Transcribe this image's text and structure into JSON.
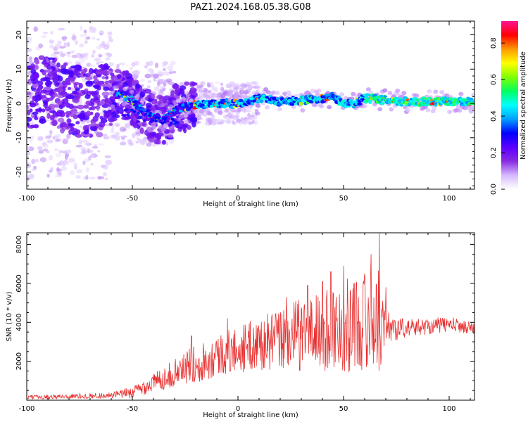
{
  "figure_title": "PAZ1.2024.168.05.38.G08",
  "chart_data": [
    {
      "type": "heatmap",
      "name": "spectrogram",
      "xlabel": "Height of straight line (km)",
      "ylabel": "Frequency (Hz)",
      "xlim": [
        -100,
        112
      ],
      "ylim": [
        -25,
        24
      ],
      "x_ticks": [
        -100,
        -50,
        0,
        50,
        100
      ],
      "y_ticks": [
        -20,
        -10,
        0,
        10,
        20
      ],
      "colorbar": {
        "label": "Normalized spectral amplitude",
        "range": [
          0,
          0.92
        ],
        "ticks": [
          0.0,
          0.2,
          0.4,
          0.6,
          0.8
        ],
        "colormap": [
          "#ffffff",
          "#d6b8ff",
          "#8a2be2",
          "#5a00ff",
          "#0000ff",
          "#00a0ff",
          "#00ffff",
          "#00ff60",
          "#80ff00",
          "#ffff00",
          "#ff9900",
          "#ff0000",
          "#ff1493"
        ]
      },
      "ridge": {
        "note_free": true,
        "points": [
          [
            -100,
            2
          ],
          [
            -90,
            4
          ],
          [
            -80,
            1
          ],
          [
            -70,
            0
          ],
          [
            -60,
            2
          ],
          [
            -55,
            3
          ],
          [
            -50,
            1
          ],
          [
            -45,
            -2
          ],
          [
            -40,
            -4
          ],
          [
            -35,
            -5
          ],
          [
            -30,
            -2
          ],
          [
            -25,
            -1
          ],
          [
            -20,
            -0.5
          ],
          [
            -10,
            0
          ],
          [
            0,
            0
          ],
          [
            10,
            1.5
          ],
          [
            20,
            0.5
          ],
          [
            30,
            0.8
          ],
          [
            40,
            1.5
          ],
          [
            45,
            2
          ],
          [
            50,
            0
          ],
          [
            55,
            0
          ],
          [
            60,
            1.5
          ],
          [
            70,
            1
          ],
          [
            80,
            0.5
          ],
          [
            90,
            0.5
          ],
          [
            100,
            0.5
          ],
          [
            112,
            0.5
          ]
        ]
      },
      "grid": false
    },
    {
      "type": "line",
      "name": "snr",
      "xlabel": "Height of straight line (km)",
      "ylabel": "SNR (10 * v/v)",
      "xlim": [
        -100,
        112
      ],
      "ylim": [
        0,
        8600
      ],
      "x_ticks": [
        -100,
        -50,
        0,
        50,
        100
      ],
      "y_ticks": [
        2000,
        4000,
        6000,
        8000
      ],
      "color": "#e83030",
      "envelope": [
        [
          -100,
          150
        ],
        [
          -80,
          200
        ],
        [
          -60,
          250
        ],
        [
          -50,
          400
        ],
        [
          -40,
          900
        ],
        [
          -30,
          1400
        ],
        [
          -20,
          1900
        ],
        [
          -10,
          2300
        ],
        [
          0,
          2600
        ],
        [
          10,
          2900
        ],
        [
          20,
          3100
        ],
        [
          30,
          3400
        ],
        [
          40,
          3600
        ],
        [
          50,
          3800
        ],
        [
          60,
          4000
        ],
        [
          67,
          4100
        ],
        [
          70,
          3800
        ],
        [
          75,
          3700
        ],
        [
          80,
          3700
        ],
        [
          90,
          3800
        ],
        [
          100,
          3900
        ],
        [
          112,
          3700
        ]
      ],
      "spread": [
        [
          -100,
          100
        ],
        [
          -60,
          150
        ],
        [
          -45,
          400
        ],
        [
          -30,
          700
        ],
        [
          -20,
          1000
        ],
        [
          -10,
          1100
        ],
        [
          0,
          1200
        ],
        [
          10,
          1400
        ],
        [
          20,
          1600
        ],
        [
          30,
          1900
        ],
        [
          40,
          2200
        ],
        [
          50,
          2400
        ],
        [
          60,
          2500
        ],
        [
          67,
          2600
        ],
        [
          70,
          900
        ],
        [
          80,
          450
        ],
        [
          100,
          400
        ],
        [
          112,
          300
        ]
      ],
      "peaks": [
        [
          -22,
          3300
        ],
        [
          -5,
          4200
        ],
        [
          23,
          5300
        ],
        [
          33,
          5900
        ],
        [
          40,
          6100
        ],
        [
          44,
          6600
        ],
        [
          50,
          6900
        ],
        [
          55,
          6000
        ],
        [
          60,
          6500
        ],
        [
          63,
          7500
        ],
        [
          67,
          8600
        ],
        [
          70,
          5800
        ]
      ]
    }
  ]
}
